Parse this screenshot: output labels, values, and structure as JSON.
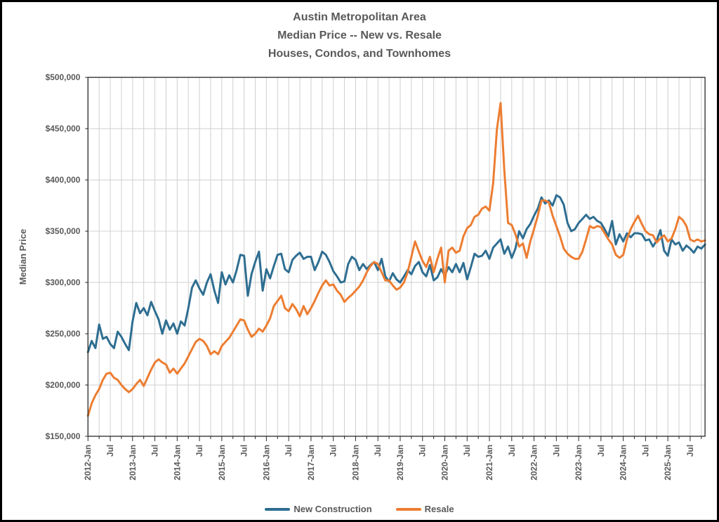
{
  "figure": {
    "title_lines": [
      "Austin Metropolitan Area",
      "Median Price -- New vs. Resale",
      "Houses, Condos, and Townhomes"
    ],
    "text_color": "#595959",
    "grid_color": "#CFCFCF",
    "axis_color": "#262626",
    "background": "#FFFFFF"
  },
  "chart_data": {
    "type": "line",
    "title": "Austin Metropolitan Area Median Price -- New vs. Resale, Houses, Condos, and Townhomes",
    "xlabel": "",
    "ylabel": "Median Price",
    "ylim": [
      150000,
      500000
    ],
    "ytick_step": 50000,
    "ytick_labels": [
      "$150,000",
      "$200,000",
      "$250,000",
      "$300,000",
      "$350,000",
      "$400,000",
      "$450,000",
      "$500,000"
    ],
    "x_frequency": "monthly",
    "x_start": "2012-Jan",
    "x_end": "2025-Nov",
    "n_points": 167,
    "xtick_interval_months": 6,
    "xtick_labels": [
      "2012-Jan",
      "Jul",
      "2013-Jan",
      "Jul",
      "2014-Jan",
      "Jul",
      "2015-Jan",
      "Jul",
      "2016-Jan",
      "Jul",
      "2017-Jan",
      "Jul",
      "2018-Jan",
      "Jul",
      "2019-Jan",
      "Jul",
      "2020-Jan",
      "Jul",
      "2021-Jan",
      "Jul",
      "2022-Jan",
      "Jul",
      "2023-Jan",
      "Jul",
      "2024-Jan",
      "Jul",
      "2025-Jan",
      "Jul"
    ],
    "grid": {
      "horizontal": "every 50000",
      "vertical": "every 3 months"
    },
    "legend_position": "bottom-center",
    "series": [
      {
        "name": "New Construction",
        "color": "#2E6E91",
        "values": [
          232000,
          243000,
          236000,
          259000,
          245000,
          247000,
          240000,
          236000,
          252000,
          247000,
          240000,
          234000,
          262000,
          280000,
          270000,
          275000,
          268000,
          281000,
          272000,
          264000,
          250000,
          263000,
          254000,
          260000,
          250000,
          262000,
          258000,
          275000,
          295000,
          302000,
          294000,
          288000,
          300000,
          308000,
          292000,
          280000,
          310000,
          298000,
          307000,
          300000,
          312000,
          327000,
          326000,
          287000,
          308000,
          320000,
          330000,
          292000,
          313000,
          304000,
          316000,
          327000,
          328000,
          313000,
          310000,
          322000,
          326000,
          329000,
          323000,
          325000,
          325000,
          312000,
          320000,
          330000,
          327000,
          320000,
          311000,
          306000,
          300000,
          301000,
          318000,
          325000,
          322000,
          312000,
          318000,
          313000,
          317000,
          320000,
          312000,
          323000,
          306000,
          301000,
          309000,
          303000,
          300000,
          306000,
          312000,
          308000,
          316000,
          320000,
          310000,
          306000,
          317000,
          302000,
          305000,
          313000,
          307000,
          315000,
          310000,
          318000,
          310000,
          319000,
          303000,
          315000,
          328000,
          325000,
          326000,
          331000,
          323000,
          334000,
          338000,
          342000,
          328000,
          335000,
          324000,
          333000,
          350000,
          343000,
          352000,
          357000,
          365000,
          372000,
          383000,
          377000,
          380000,
          375000,
          385000,
          383000,
          376000,
          358000,
          350000,
          352000,
          358000,
          362000,
          366000,
          362000,
          364000,
          360000,
          358000,
          352000,
          345000,
          360000,
          337000,
          347000,
          340000,
          348000,
          344000,
          348000,
          348000,
          347000,
          341000,
          342000,
          335000,
          341000,
          351000,
          331000,
          326000,
          342000,
          337000,
          339000,
          331000,
          336000,
          333000,
          329000,
          335000,
          333000,
          337000
        ]
      },
      {
        "name": "Resale",
        "color": "#ED7D31",
        "values": [
          170000,
          182000,
          190000,
          196000,
          205000,
          211000,
          212000,
          207000,
          205000,
          200000,
          196000,
          193000,
          196000,
          201000,
          205000,
          199000,
          207000,
          215000,
          222000,
          225000,
          222000,
          220000,
          212000,
          216000,
          211000,
          216000,
          221000,
          228000,
          235000,
          242000,
          245000,
          243000,
          238000,
          230000,
          233000,
          230000,
          238000,
          242000,
          246000,
          252000,
          258000,
          264000,
          263000,
          254000,
          247000,
          250000,
          255000,
          252000,
          258000,
          265000,
          277000,
          282000,
          287000,
          275000,
          272000,
          279000,
          274000,
          267000,
          277000,
          269000,
          275000,
          282000,
          290000,
          297000,
          302000,
          297000,
          298000,
          292000,
          288000,
          281000,
          285000,
          288000,
          292000,
          296000,
          302000,
          310000,
          316000,
          320000,
          318000,
          310000,
          302000,
          302000,
          297000,
          293000,
          295000,
          300000,
          310000,
          325000,
          340000,
          330000,
          321000,
          315000,
          325000,
          310000,
          323000,
          334000,
          300000,
          331000,
          334000,
          329000,
          331000,
          345000,
          353000,
          356000,
          364000,
          366000,
          372000,
          374000,
          370000,
          397000,
          449000,
          475000,
          410000,
          358000,
          356000,
          347000,
          335000,
          338000,
          324000,
          340000,
          352000,
          365000,
          380000,
          380000,
          378000,
          365000,
          355000,
          345000,
          333000,
          328000,
          325000,
          323000,
          323000,
          330000,
          342000,
          355000,
          353000,
          355000,
          354000,
          348000,
          342000,
          337000,
          327000,
          324000,
          327000,
          342000,
          352000,
          359000,
          365000,
          357000,
          350000,
          347000,
          346000,
          339000,
          343000,
          346000,
          340000,
          343000,
          352000,
          364000,
          361000,
          355000,
          342000,
          340000,
          342000,
          340000,
          341000
        ]
      }
    ]
  }
}
